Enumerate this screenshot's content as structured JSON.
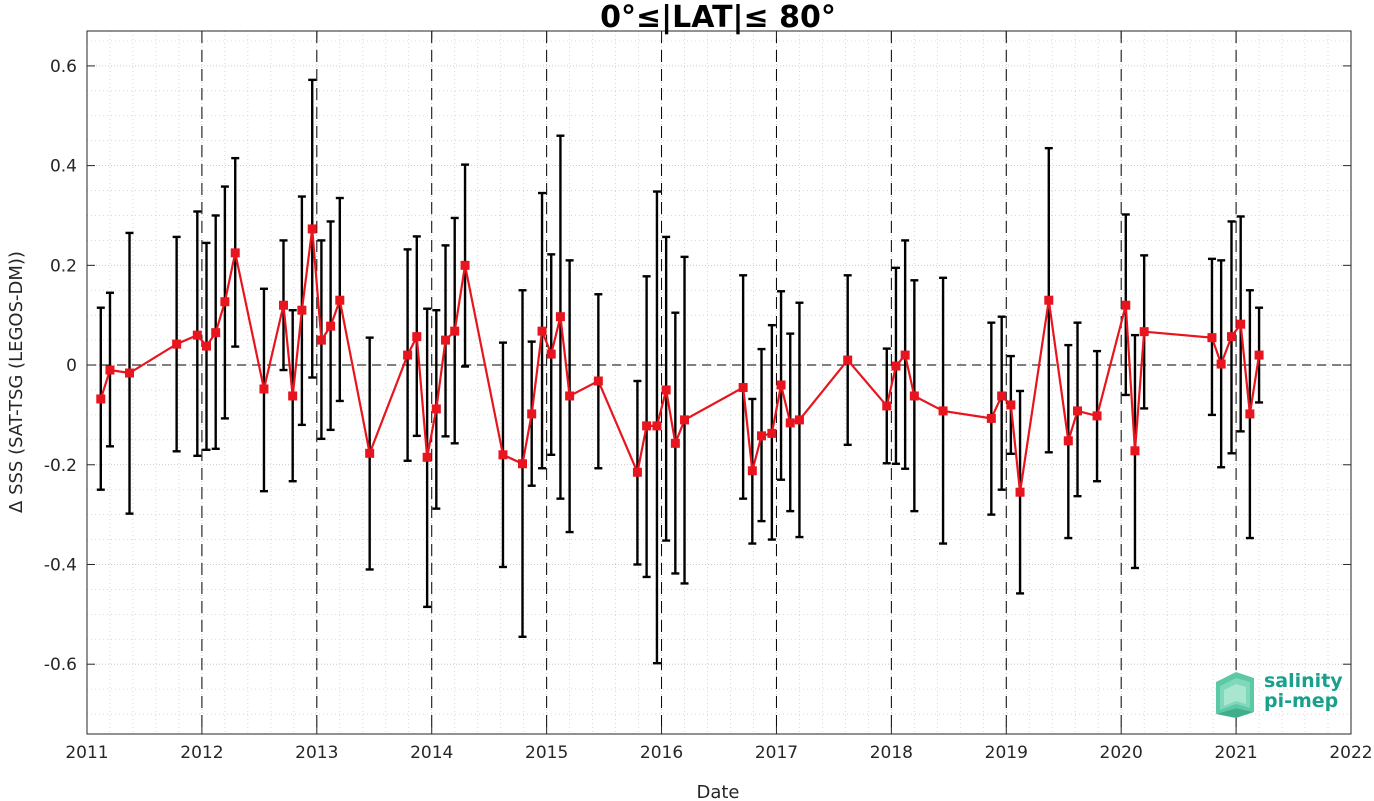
{
  "chart_data": {
    "type": "line",
    "title": "0°≤|LAT|≤ 80°",
    "xlabel": "Date",
    "ylabel": "Δ SSS (SAT-TSG (LEGOS-DM))",
    "xlim": [
      2011,
      2022
    ],
    "ylim": [
      -0.74,
      0.67
    ],
    "xticks": [
      2011,
      2012,
      2013,
      2014,
      2015,
      2016,
      2017,
      2018,
      2019,
      2020,
      2021,
      2022
    ],
    "xtick_labels": [
      "2011",
      "2012",
      "2013",
      "2014",
      "2015",
      "2016",
      "2017",
      "2018",
      "2019",
      "2020",
      "2021",
      "2022"
    ],
    "yticks": [
      -0.6,
      -0.4,
      -0.2,
      0,
      0.2,
      0.4,
      0.6
    ],
    "ytick_labels": [
      "-0.6",
      "-0.4",
      "-0.2",
      "0",
      "0.2",
      "0.4",
      "0.6"
    ],
    "grid": true,
    "year_boundaries": [
      2012,
      2013,
      2014,
      2015,
      2016,
      2017,
      2018,
      2019,
      2020,
      2021
    ],
    "series": [
      {
        "color": "#e8141e",
        "marker": "square",
        "errorbar_color": "#000000",
        "x": [
          2011.12,
          2011.2,
          2011.37,
          2011.78,
          2011.96,
          2012.04,
          2012.12,
          2012.2,
          2012.29,
          2012.54,
          2012.71,
          2012.79,
          2012.87,
          2012.96,
          2013.04,
          2013.12,
          2013.2,
          2013.46,
          2013.79,
          2013.87,
          2013.96,
          2014.04,
          2014.12,
          2014.2,
          2014.29,
          2014.62,
          2014.79,
          2014.87,
          2014.96,
          2015.04,
          2015.12,
          2015.2,
          2015.45,
          2015.79,
          2015.87,
          2015.96,
          2016.04,
          2016.12,
          2016.2,
          2016.71,
          2016.79,
          2016.87,
          2016.96,
          2017.04,
          2017.12,
          2017.2,
          2017.62,
          2017.96,
          2018.04,
          2018.12,
          2018.2,
          2018.45,
          2018.87,
          2018.96,
          2019.04,
          2019.12,
          2019.37,
          2019.54,
          2019.62,
          2019.79,
          2020.04,
          2020.12,
          2020.2,
          2020.79,
          2020.87,
          2020.96,
          2021.04,
          2021.12,
          2021.2
        ],
        "y": [
          -0.068,
          -0.01,
          -0.016,
          0.042,
          0.06,
          0.038,
          0.065,
          0.127,
          0.225,
          -0.048,
          0.12,
          -0.062,
          0.11,
          0.273,
          0.05,
          0.078,
          0.13,
          -0.177,
          0.02,
          0.057,
          -0.185,
          -0.088,
          0.05,
          0.068,
          0.2,
          -0.18,
          -0.198,
          -0.098,
          0.068,
          0.022,
          0.097,
          -0.062,
          -0.032,
          -0.215,
          -0.122,
          -0.122,
          -0.05,
          -0.157,
          -0.11,
          -0.045,
          -0.212,
          -0.142,
          -0.137,
          -0.04,
          -0.116,
          -0.11,
          0.01,
          -0.082,
          -0.002,
          0.02,
          -0.062,
          -0.092,
          -0.107,
          -0.062,
          -0.08,
          -0.255,
          0.13,
          -0.152,
          -0.092,
          -0.102,
          0.12,
          -0.172,
          0.067,
          0.055,
          0.002,
          0.057,
          0.082,
          -0.098,
          0.02
        ],
        "err_low": [
          -0.25,
          -0.163,
          -0.298,
          -0.173,
          -0.182,
          -0.17,
          -0.168,
          -0.107,
          0.037,
          -0.253,
          -0.01,
          -0.233,
          -0.12,
          -0.025,
          -0.148,
          -0.13,
          -0.072,
          -0.41,
          -0.192,
          -0.142,
          -0.485,
          -0.288,
          -0.143,
          -0.157,
          -0.003,
          -0.405,
          -0.545,
          -0.242,
          -0.207,
          -0.18,
          -0.268,
          -0.335,
          -0.207,
          -0.4,
          -0.425,
          -0.598,
          -0.352,
          -0.418,
          -0.438,
          -0.268,
          -0.358,
          -0.313,
          -0.35,
          -0.23,
          -0.293,
          -0.345,
          -0.16,
          -0.197,
          -0.198,
          -0.208,
          -0.293,
          -0.358,
          -0.3,
          -0.25,
          -0.178,
          -0.458,
          -0.175,
          -0.347,
          -0.263,
          -0.233,
          -0.06,
          -0.407,
          -0.087,
          -0.1,
          -0.205,
          -0.177,
          -0.133,
          -0.347,
          -0.075
        ],
        "err_high": [
          0.115,
          0.145,
          0.265,
          0.257,
          0.308,
          0.245,
          0.3,
          0.358,
          0.415,
          0.153,
          0.25,
          0.11,
          0.338,
          0.572,
          0.25,
          0.288,
          0.335,
          0.055,
          0.232,
          0.258,
          0.113,
          0.11,
          0.24,
          0.295,
          0.402,
          0.045,
          0.15,
          0.047,
          0.345,
          0.222,
          0.46,
          0.21,
          0.142,
          -0.032,
          0.178,
          0.348,
          0.257,
          0.105,
          0.217,
          0.18,
          -0.068,
          0.032,
          0.08,
          0.148,
          0.063,
          0.125,
          0.18,
          0.033,
          0.195,
          0.25,
          0.17,
          0.175,
          0.085,
          0.097,
          0.018,
          -0.052,
          0.435,
          0.04,
          0.085,
          0.028,
          0.302,
          0.06,
          0.22,
          0.213,
          0.21,
          0.288,
          0.298,
          0.15,
          0.115
        ]
      }
    ]
  },
  "logo": {
    "line1": "salinity",
    "line2": "pi-mep"
  }
}
